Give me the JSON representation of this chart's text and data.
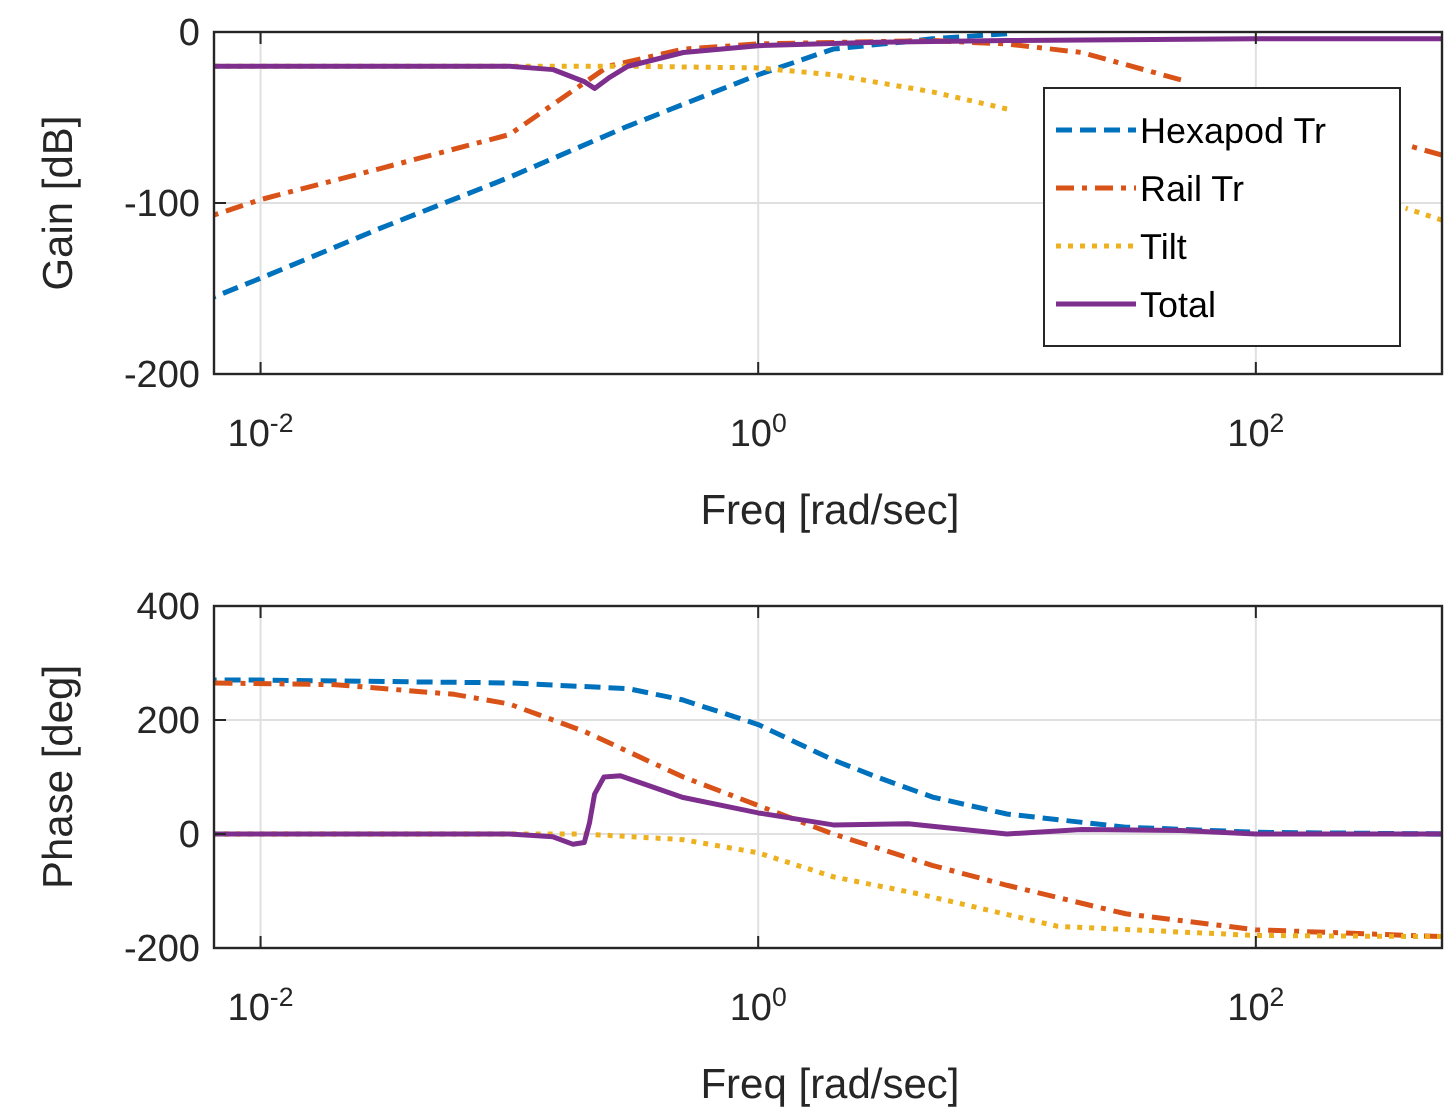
{
  "chart_data": [
    {
      "type": "line",
      "xlabel": "Freq [rad/sec]",
      "ylabel": "Gain [dB]",
      "log": "x",
      "grid": true,
      "legend": "right",
      "xlim": [
        0.0065,
        560
      ],
      "ylim": [
        -200,
        0
      ],
      "xticks": [
        {
          "value": 0.01,
          "label": "10$^{-2}$"
        },
        {
          "value": 1,
          "label": "10$^{0}$"
        },
        {
          "value": 100,
          "label": "10$^{2}$"
        }
      ],
      "yticks": [
        -200,
        -100,
        0
      ],
      "series": [
        {
          "name": "Hexapod Tr",
          "color": "#0072bd",
          "line_style": "dashed",
          "x": [
            0.0065,
            0.01,
            0.03,
            0.1,
            0.3,
            1,
            2,
            5,
            10
          ],
          "values": [
            -155,
            -144,
            -115,
            -85,
            -55,
            -25,
            -10,
            -4,
            -1
          ]
        },
        {
          "name": "Rail Tr",
          "color": "#d95319",
          "line_style": "dashdot",
          "x": [
            0.0065,
            0.01,
            0.03,
            0.1,
            0.25,
            0.5,
            1,
            5,
            10,
            20,
            50,
            100,
            200,
            400,
            560
          ],
          "values": [
            -107,
            -98,
            -80,
            -60,
            -20,
            -10,
            -7,
            -5,
            -7,
            -12,
            -28,
            null,
            null,
            -66,
            -72
          ]
        },
        {
          "name": "Tilt",
          "color": "#edb120",
          "line_style": "dotted",
          "x": [
            0.0065,
            0.1,
            0.3,
            1,
            2,
            5,
            10,
            30,
            100,
            300,
            400,
            560
          ],
          "values": [
            -20,
            -20,
            -20,
            -21,
            -25,
            -35,
            -45,
            null,
            null,
            null,
            -103,
            -110
          ]
        },
        {
          "name": "Total",
          "color": "#7e2f8e",
          "line_style": "solid",
          "x": [
            0.0065,
            0.1,
            0.15,
            0.2,
            0.22,
            0.25,
            0.3,
            0.5,
            1,
            3,
            10,
            100,
            560
          ],
          "values": [
            -20,
            -20,
            -22,
            -29,
            -33,
            -27,
            -20,
            -12,
            -8,
            -6,
            -5,
            -4,
            -4
          ]
        }
      ]
    },
    {
      "type": "line",
      "xlabel": "Freq [rad/sec]",
      "ylabel": "Phase [deg]",
      "log": "x",
      "grid": true,
      "xlim": [
        0.0065,
        560
      ],
      "ylim": [
        -200,
        400
      ],
      "xticks": [
        {
          "value": 0.01,
          "label": "10$^{-2}$"
        },
        {
          "value": 1,
          "label": "10$^{0}$"
        },
        {
          "value": 100,
          "label": "10$^{2}$"
        }
      ],
      "yticks": [
        -200,
        0,
        200,
        400
      ],
      "series": [
        {
          "color": "#0072bd",
          "line_style": "dashed",
          "x": [
            0.0065,
            0.01,
            0.1,
            0.3,
            0.5,
            1,
            2,
            3,
            5,
            10,
            30,
            100,
            560
          ],
          "values": [
            270,
            270,
            265,
            255,
            235,
            192,
            130,
            100,
            65,
            35,
            12,
            3,
            0
          ]
        },
        {
          "color": "#d95319",
          "line_style": "dashdot",
          "x": [
            0.0065,
            0.02,
            0.06,
            0.1,
            0.2,
            0.5,
            1,
            2,
            5,
            10,
            30,
            100,
            560
          ],
          "values": [
            265,
            262,
            245,
            228,
            180,
            100,
            50,
            0,
            -55,
            -90,
            -140,
            -168,
            -180
          ]
        },
        {
          "color": "#edb120",
          "line_style": "dotted",
          "x": [
            0.0065,
            0.2,
            0.5,
            1,
            2,
            4.4,
            16,
            100,
            560
          ],
          "values": [
            0,
            0,
            -10,
            -33,
            -75,
            -105,
            -162,
            -178,
            -180
          ]
        },
        {
          "color": "#7e2f8e",
          "line_style": "solid",
          "x": [
            0.0065,
            0.1,
            0.15,
            0.18,
            0.2,
            0.21,
            0.22,
            0.24,
            0.28,
            0.5,
            1,
            2,
            4,
            10,
            20,
            50,
            100,
            560
          ],
          "values": [
            0,
            0,
            -5,
            -18,
            -15,
            20,
            70,
            100,
            102,
            64,
            37,
            16,
            18,
            0,
            8,
            6,
            0,
            0
          ]
        }
      ]
    }
  ]
}
